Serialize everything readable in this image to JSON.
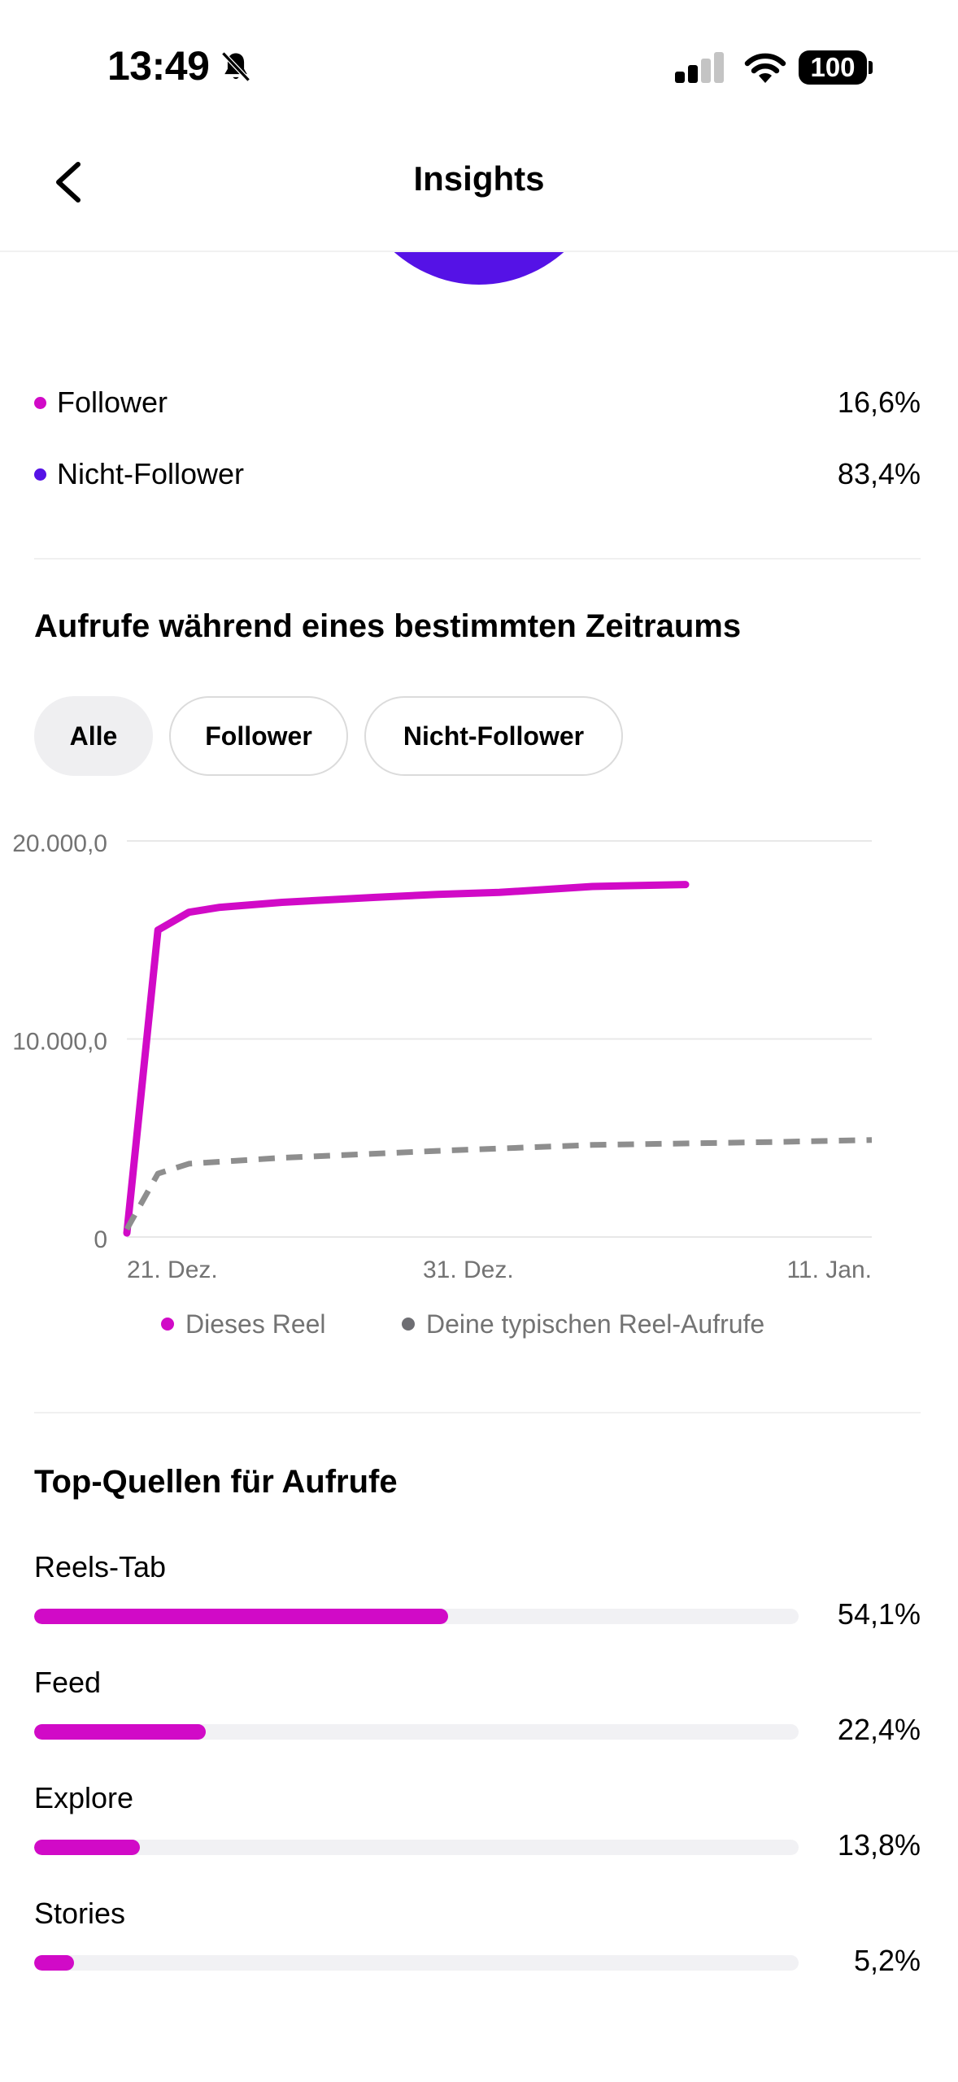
{
  "status_bar": {
    "time": "13:49",
    "battery": "100"
  },
  "nav": {
    "title": "Insights"
  },
  "audience_split": [
    {
      "label": "Follower",
      "value": "16,6%",
      "color": "#d10ac7"
    },
    {
      "label": "Nicht-Follower",
      "value": "83,4%",
      "color": "#5512e6"
    }
  ],
  "views_section": {
    "title": "Aufrufe während eines bestimmten Zeitraums",
    "filters": [
      {
        "label": "Alle",
        "active": true
      },
      {
        "label": "Follower",
        "active": false
      },
      {
        "label": "Nicht-Follower",
        "active": false
      }
    ]
  },
  "chart_data": {
    "type": "line",
    "x_ticks": [
      "21. Dez.",
      "31. Dez.",
      "11. Jan."
    ],
    "y_ticks": [
      "20.000,0",
      "10.000,0",
      "0"
    ],
    "ylim": [
      0,
      20000
    ],
    "legend_position": "bottom",
    "series": [
      {
        "name": "Dieses Reel",
        "color": "#d10ac7",
        "style": "solid",
        "x": [
          "2024-12-20",
          "2024-12-21",
          "2024-12-22",
          "2024-12-23",
          "2024-12-25",
          "2024-12-28",
          "2024-12-30",
          "2025-01-01",
          "2025-01-04",
          "2025-01-07"
        ],
        "y": [
          200,
          15500,
          16400,
          16650,
          16900,
          17150,
          17300,
          17400,
          17700,
          17800
        ]
      },
      {
        "name": "Deine typischen Reel-Aufrufe",
        "color": "#8e8e8e",
        "style": "dashed",
        "x": [
          "2024-12-20",
          "2024-12-21",
          "2024-12-22",
          "2024-12-25",
          "2024-12-30",
          "2025-01-04",
          "2025-01-10",
          "2025-01-13"
        ],
        "y": [
          400,
          3200,
          3700,
          4000,
          4350,
          4650,
          4800,
          4900
        ]
      }
    ]
  },
  "sources": {
    "title": "Top-Quellen für Aufrufe",
    "items": [
      {
        "label": "Reels-Tab",
        "value": "54,1%",
        "fraction": 0.541
      },
      {
        "label": "Feed",
        "value": "22,4%",
        "fraction": 0.224
      },
      {
        "label": "Explore",
        "value": "13,8%",
        "fraction": 0.138
      },
      {
        "label": "Stories",
        "value": "5,2%",
        "fraction": 0.052
      }
    ]
  }
}
